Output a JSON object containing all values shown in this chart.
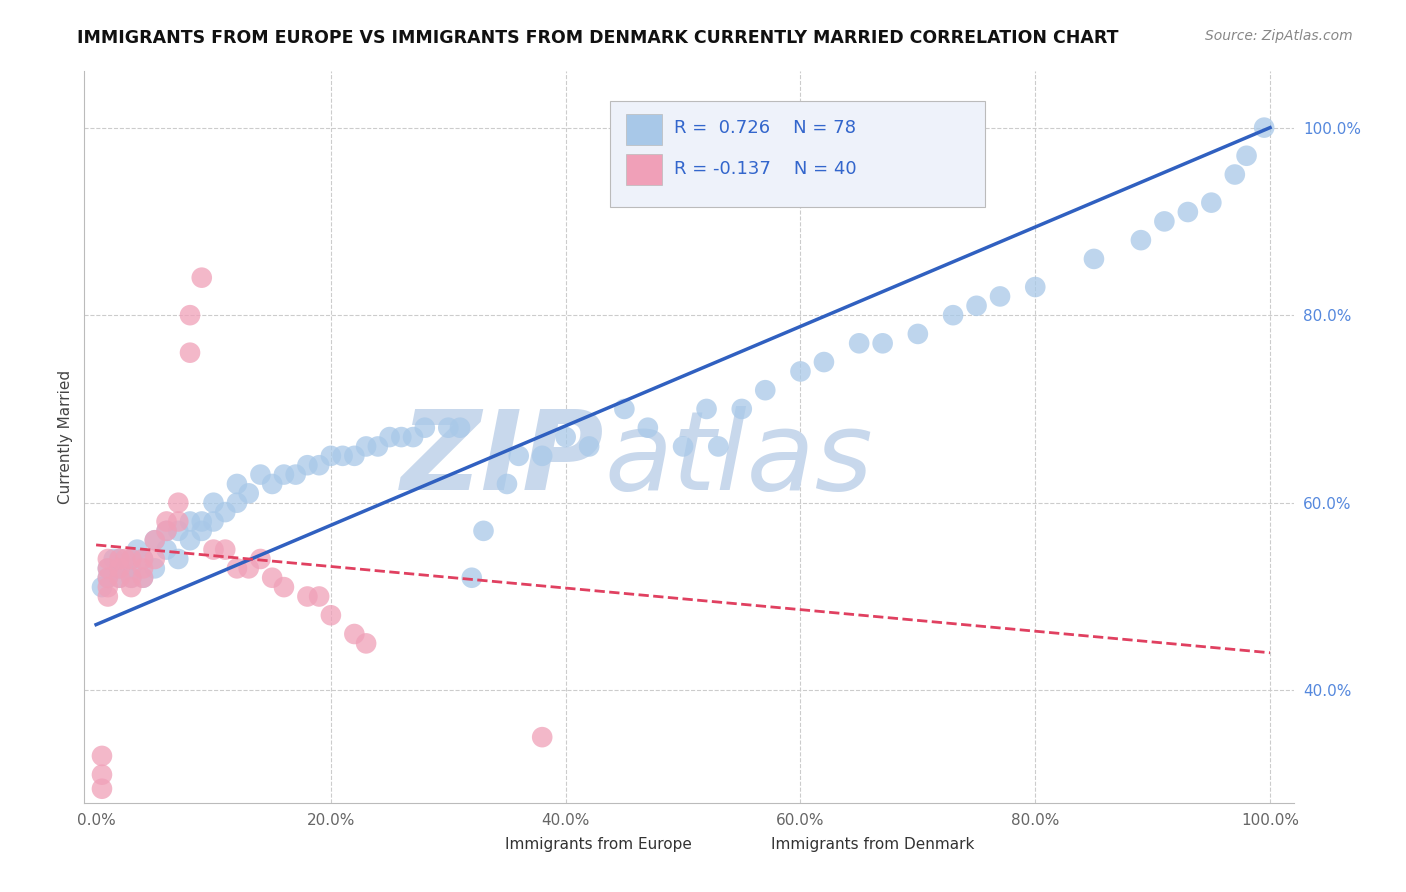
{
  "title": "IMMIGRANTS FROM EUROPE VS IMMIGRANTS FROM DENMARK CURRENTLY MARRIED CORRELATION CHART",
  "source": "Source: ZipAtlas.com",
  "ylabel": "Currently Married",
  "xlim": [
    -0.01,
    1.02
  ],
  "ylim": [
    0.28,
    1.06
  ],
  "xticks": [
    0.0,
    0.2,
    0.4,
    0.6,
    0.8,
    1.0
  ],
  "xtick_labels": [
    "0.0%",
    "20.0%",
    "40.0%",
    "60.0%",
    "80.0%",
    "100.0%"
  ],
  "ytick_labels_right": [
    "40.0%",
    "60.0%",
    "80.0%",
    "100.0%"
  ],
  "yticks_right": [
    0.4,
    0.6,
    0.8,
    1.0
  ],
  "R_blue": 0.726,
  "N_blue": 78,
  "R_pink": -0.137,
  "N_pink": 40,
  "blue_color": "#A8C8E8",
  "pink_color": "#F0A0B8",
  "blue_line_color": "#3060C0",
  "pink_line_color": "#E04060",
  "watermark_zip": "ZIP",
  "watermark_atlas": "atlas",
  "watermark_color": "#C8D8EC",
  "blue_trend_y_start": 0.47,
  "blue_trend_y_end": 1.0,
  "pink_trend_y_start": 0.555,
  "pink_trend_y_end": 0.44,
  "legend_box_color": "#EEF2FA",
  "grid_color": "#CCCCCC",
  "blue_scatter_x": [
    0.005,
    0.01,
    0.01,
    0.015,
    0.02,
    0.02,
    0.02,
    0.025,
    0.03,
    0.03,
    0.03,
    0.035,
    0.04,
    0.04,
    0.05,
    0.05,
    0.06,
    0.06,
    0.07,
    0.07,
    0.08,
    0.08,
    0.09,
    0.09,
    0.1,
    0.1,
    0.11,
    0.12,
    0.12,
    0.13,
    0.14,
    0.15,
    0.16,
    0.17,
    0.18,
    0.19,
    0.2,
    0.21,
    0.22,
    0.23,
    0.24,
    0.25,
    0.26,
    0.27,
    0.28,
    0.3,
    0.31,
    0.32,
    0.33,
    0.35,
    0.36,
    0.38,
    0.4,
    0.42,
    0.45,
    0.47,
    0.5,
    0.52,
    0.53,
    0.55,
    0.57,
    0.6,
    0.62,
    0.65,
    0.67,
    0.7,
    0.73,
    0.75,
    0.77,
    0.8,
    0.85,
    0.89,
    0.91,
    0.93,
    0.95,
    0.97,
    0.98,
    0.995
  ],
  "blue_scatter_y": [
    0.51,
    0.52,
    0.53,
    0.54,
    0.52,
    0.53,
    0.54,
    0.53,
    0.52,
    0.53,
    0.54,
    0.55,
    0.52,
    0.54,
    0.53,
    0.56,
    0.55,
    0.57,
    0.54,
    0.57,
    0.56,
    0.58,
    0.57,
    0.58,
    0.58,
    0.6,
    0.59,
    0.6,
    0.62,
    0.61,
    0.63,
    0.62,
    0.63,
    0.63,
    0.64,
    0.64,
    0.65,
    0.65,
    0.65,
    0.66,
    0.66,
    0.67,
    0.67,
    0.67,
    0.68,
    0.68,
    0.68,
    0.52,
    0.57,
    0.62,
    0.65,
    0.65,
    0.67,
    0.66,
    0.7,
    0.68,
    0.66,
    0.7,
    0.66,
    0.7,
    0.72,
    0.74,
    0.75,
    0.77,
    0.77,
    0.78,
    0.8,
    0.81,
    0.82,
    0.83,
    0.86,
    0.88,
    0.9,
    0.91,
    0.92,
    0.95,
    0.97,
    1.0
  ],
  "pink_scatter_x": [
    0.005,
    0.005,
    0.005,
    0.01,
    0.01,
    0.01,
    0.01,
    0.01,
    0.02,
    0.02,
    0.02,
    0.025,
    0.03,
    0.03,
    0.03,
    0.04,
    0.04,
    0.04,
    0.05,
    0.05,
    0.06,
    0.06,
    0.07,
    0.07,
    0.08,
    0.08,
    0.09,
    0.1,
    0.11,
    0.12,
    0.13,
    0.14,
    0.15,
    0.16,
    0.18,
    0.19,
    0.2,
    0.22,
    0.23,
    0.38
  ],
  "pink_scatter_y": [
    0.295,
    0.31,
    0.33,
    0.5,
    0.51,
    0.52,
    0.53,
    0.54,
    0.52,
    0.53,
    0.54,
    0.54,
    0.51,
    0.52,
    0.54,
    0.52,
    0.53,
    0.54,
    0.54,
    0.56,
    0.57,
    0.58,
    0.58,
    0.6,
    0.76,
    0.8,
    0.84,
    0.55,
    0.55,
    0.53,
    0.53,
    0.54,
    0.52,
    0.51,
    0.5,
    0.5,
    0.48,
    0.46,
    0.45,
    0.35
  ]
}
